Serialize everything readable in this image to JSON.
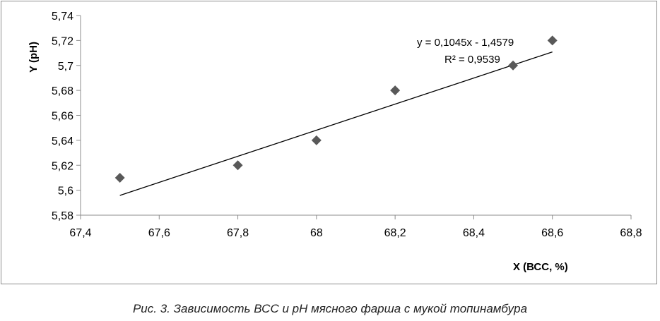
{
  "chart_data": {
    "type": "scatter",
    "xlabel": "X  (ВСС, %)",
    "ylabel": "Y  (pH)",
    "xlim": [
      67.4,
      68.8
    ],
    "ylim": [
      5.58,
      5.74
    ],
    "x_ticks": [
      "67,4",
      "67,6",
      "67,8",
      "68",
      "68,2",
      "68,4",
      "68,6",
      "68,8"
    ],
    "y_ticks": [
      "5,58",
      "5,6",
      "5,62",
      "5,64",
      "5,66",
      "5,68",
      "5,7",
      "5,72",
      "5,74"
    ],
    "grid": false,
    "marker_color": "#595959",
    "series": [
      {
        "x": [
          67.5,
          67.8,
          68.0,
          68.2,
          68.5,
          68.6
        ],
        "y": [
          5.61,
          5.62,
          5.64,
          5.68,
          5.7,
          5.72
        ]
      }
    ],
    "trendline": {
      "type": "linear",
      "slope": 0.1045,
      "intercept": -1.4579,
      "x_range": [
        67.5,
        68.6
      ],
      "equation_label": "y = 0,1045x - 1,4579",
      "r2_label": "R² = 0,9539"
    }
  },
  "caption": "Рис. 3. Зависимость ВСС и pH мясного фарша с мукой топинамбура"
}
